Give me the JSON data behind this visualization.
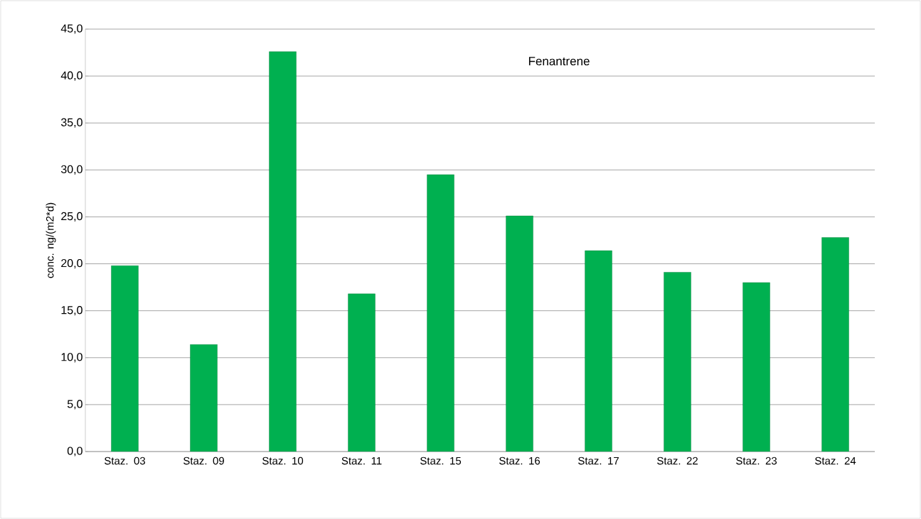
{
  "chart_data": {
    "type": "bar",
    "title": "Fenantrene",
    "ylabel": "conc. ng/(m2*d)",
    "categories": [
      "Staz. 03",
      "Staz. 09",
      "Staz. 10",
      "Staz. 11",
      "Staz. 15",
      "Staz. 16",
      "Staz. 17",
      "Staz. 22",
      "Staz. 23",
      "Staz. 24"
    ],
    "values": [
      19.8,
      11.4,
      42.6,
      16.8,
      29.5,
      25.1,
      21.4,
      19.1,
      18.0,
      22.8
    ],
    "color": "#00b050",
    "ylim": [
      0,
      45
    ],
    "yticks": [
      {
        "value": 0,
        "label": "0,0"
      },
      {
        "value": 5,
        "label": "5,0"
      },
      {
        "value": 10,
        "label": "10,0"
      },
      {
        "value": 15,
        "label": "15,0"
      },
      {
        "value": 20,
        "label": "20,0"
      },
      {
        "value": 25,
        "label": "25,0"
      },
      {
        "value": 30,
        "label": "30,0"
      },
      {
        "value": 35,
        "label": "35,0"
      },
      {
        "value": 40,
        "label": "40,0"
      },
      {
        "value": 45,
        "label": "45,0"
      }
    ],
    "grid": "y"
  }
}
